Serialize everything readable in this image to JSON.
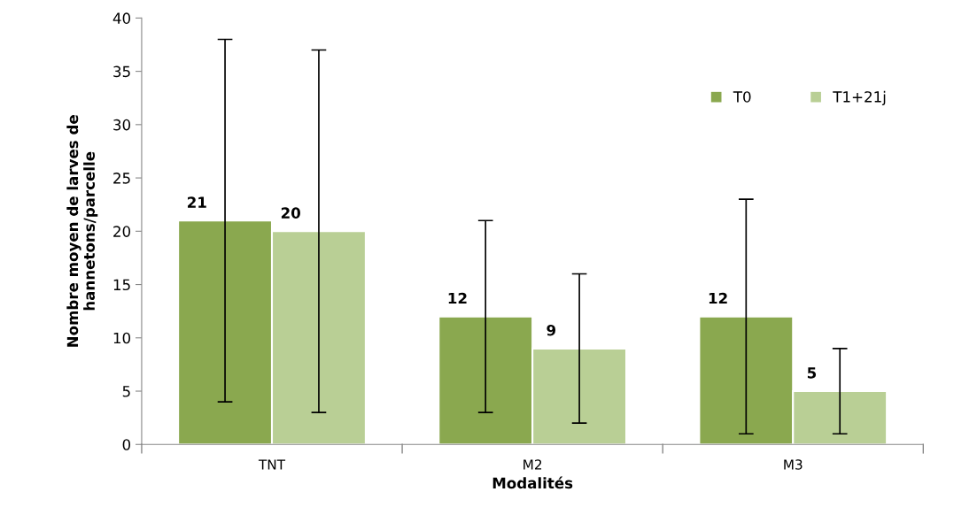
{
  "chart_data": {
    "type": "bar",
    "xlabel": "Modalités",
    "ylabel": "Nombre moyen de larves de\nhannetons/parcelle",
    "categories": [
      "TNT",
      "M2",
      "M3"
    ],
    "series": [
      {
        "name": "T0",
        "color": "#8aa84f",
        "values": [
          21,
          12,
          12
        ],
        "errors": [
          17,
          9,
          11
        ]
      },
      {
        "name": "T1+21j",
        "color": "#b9cf95",
        "values": [
          20,
          9,
          5
        ],
        "errors": [
          17,
          7,
          4
        ]
      }
    ],
    "ylim": [
      0,
      40
    ],
    "yticks": [
      0,
      5,
      10,
      15,
      20,
      25,
      30,
      35,
      40
    ],
    "grid": false,
    "legend": "top right",
    "data_labels": true
  }
}
